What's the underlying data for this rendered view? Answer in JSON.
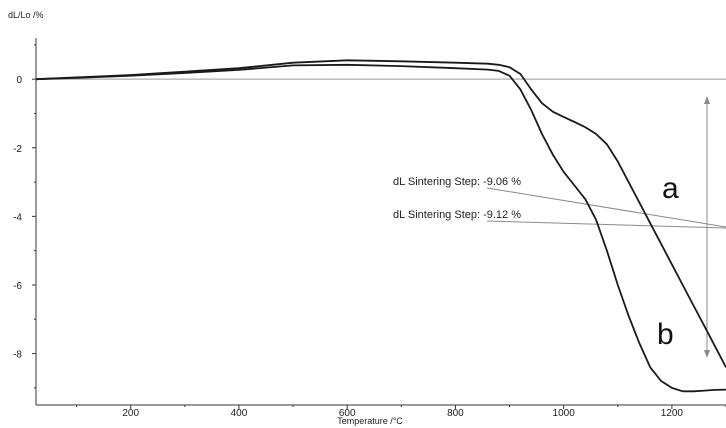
{
  "chart_data": {
    "type": "line",
    "xlabel": "Temperature /°C",
    "ylabel": "dL/Lo /%",
    "xlim": [
      25,
      1300
    ],
    "ylim": [
      -9.5,
      1.2
    ],
    "x_ticks": [
      200,
      400,
      600,
      800,
      1000,
      1200
    ],
    "y_ticks": [
      0,
      -2,
      -4,
      -6,
      -8
    ],
    "grid": false,
    "colors": {
      "curve": "#1a1a1a",
      "baseline": "#9a9a9a",
      "annotation_line": "#8a8a8a"
    },
    "series": [
      {
        "name": "a",
        "x": [
          25,
          100,
          200,
          300,
          400,
          500,
          600,
          700,
          800,
          860,
          880,
          900,
          920,
          940,
          960,
          980,
          1000,
          1020,
          1040,
          1060,
          1080,
          1100,
          1120,
          1140,
          1160,
          1180,
          1200,
          1220,
          1240,
          1260,
          1280,
          1300
        ],
        "y": [
          0.0,
          0.05,
          0.12,
          0.22,
          0.32,
          0.48,
          0.55,
          0.52,
          0.48,
          0.45,
          0.42,
          0.35,
          0.15,
          -0.3,
          -0.7,
          -0.95,
          -1.1,
          -1.25,
          -1.4,
          -1.6,
          -1.9,
          -2.4,
          -3.0,
          -3.6,
          -4.2,
          -4.8,
          -5.4,
          -6.0,
          -6.6,
          -7.2,
          -7.8,
          -8.4
        ]
      },
      {
        "name": "b",
        "x": [
          25,
          100,
          200,
          300,
          400,
          500,
          600,
          700,
          800,
          860,
          880,
          900,
          920,
          940,
          960,
          980,
          1000,
          1020,
          1040,
          1060,
          1080,
          1100,
          1120,
          1140,
          1160,
          1180,
          1200,
          1220,
          1240,
          1260,
          1280,
          1300
        ],
        "y": [
          0.0,
          0.04,
          0.1,
          0.18,
          0.27,
          0.4,
          0.42,
          0.38,
          0.32,
          0.28,
          0.24,
          0.1,
          -0.3,
          -0.9,
          -1.6,
          -2.2,
          -2.7,
          -3.1,
          -3.5,
          -4.1,
          -5.0,
          -6.0,
          -6.9,
          -7.7,
          -8.4,
          -8.8,
          -9.0,
          -9.1,
          -9.1,
          -9.08,
          -9.06,
          -9.05
        ]
      }
    ],
    "curve_labels": [
      "a",
      "b"
    ],
    "annotations": [
      {
        "text": "dL Sintering Step: -9.06 %",
        "anchor_x": 1300,
        "anchor_y": -4.6
      },
      {
        "text": "dL Sintering Step: -9.12 %",
        "anchor_x": 1300,
        "anchor_y": -4.6
      }
    ]
  }
}
